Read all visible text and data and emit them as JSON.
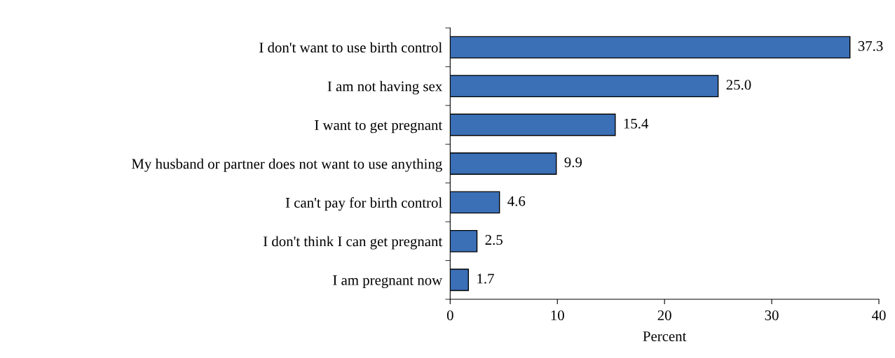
{
  "chart_data": {
    "type": "bar",
    "orientation": "horizontal",
    "xlabel": "Percent",
    "categories": [
      "I don't want to use birth control",
      "I am not having sex",
      "I want to get pregnant",
      "My husband or partner does not want to use anything",
      "I can't pay for birth control",
      "I don't think I can get pregnant",
      "I am pregnant now"
    ],
    "values": [
      37.3,
      25.0,
      15.4,
      9.9,
      4.6,
      2.5,
      1.7
    ],
    "value_labels": [
      "37.3",
      "25.0",
      "15.4",
      "9.9",
      "4.6",
      "2.5",
      "1.7"
    ],
    "color": "#3b6fb6",
    "xlim": [
      0,
      40
    ],
    "xticks": [
      0,
      10,
      20,
      30,
      40
    ],
    "grid": false
  }
}
